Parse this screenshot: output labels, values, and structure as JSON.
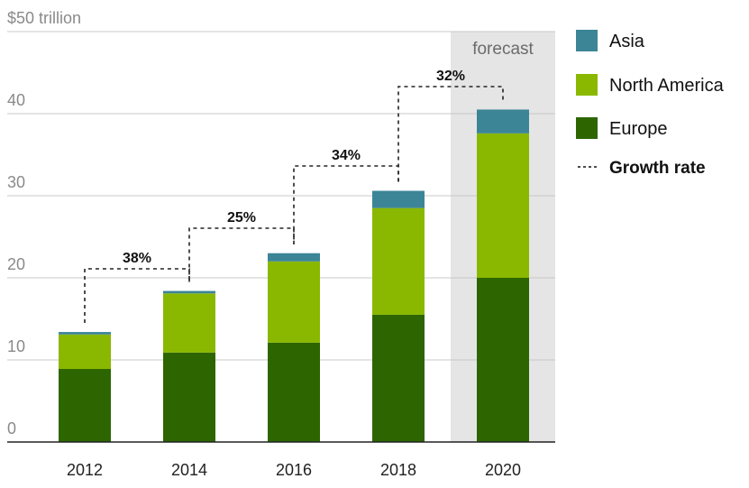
{
  "chart_data": {
    "type": "bar",
    "stacked": true,
    "categories": [
      "2012",
      "2014",
      "2016",
      "2018",
      "2020"
    ],
    "series": [
      {
        "name": "Europe",
        "color": "#2d6600",
        "values": [
          8.9,
          10.9,
          12.1,
          15.5,
          20.0
        ]
      },
      {
        "name": "North America",
        "color": "#8ab800",
        "values": [
          4.2,
          7.2,
          9.9,
          13.0,
          17.6
        ]
      },
      {
        "name": "Asia",
        "color": "#3c8597",
        "values": [
          0.3,
          0.3,
          1.0,
          2.1,
          2.9
        ]
      }
    ],
    "totals": [
      13.4,
      18.4,
      23.0,
      30.6,
      40.5
    ],
    "y_ticks": [
      {
        "value": 0,
        "label": "0"
      },
      {
        "value": 10,
        "label": "10"
      },
      {
        "value": 20,
        "label": "20"
      },
      {
        "value": 30,
        "label": "30"
      },
      {
        "value": 40,
        "label": "40"
      },
      {
        "value": 50,
        "label": "$50 trillion"
      }
    ],
    "ylim": [
      0,
      50
    ],
    "grid": true,
    "forecast": {
      "category": "2020",
      "label": "forecast"
    },
    "growth_rates": [
      {
        "from": "2012",
        "to": "2014",
        "label": "38%"
      },
      {
        "from": "2014",
        "to": "2016",
        "label": "25%"
      },
      {
        "from": "2016",
        "to": "2018",
        "label": "34%"
      },
      {
        "from": "2018",
        "to": "2020",
        "label": "32%"
      }
    ],
    "legend": {
      "position": "right",
      "items": [
        {
          "label": "Asia",
          "color": "#3c8597",
          "kind": "swatch"
        },
        {
          "label": "North America",
          "color": "#8ab800",
          "kind": "swatch"
        },
        {
          "label": "Europe",
          "color": "#2d6600",
          "kind": "swatch"
        },
        {
          "label": "Growth rate",
          "kind": "dashed-line"
        }
      ]
    }
  }
}
